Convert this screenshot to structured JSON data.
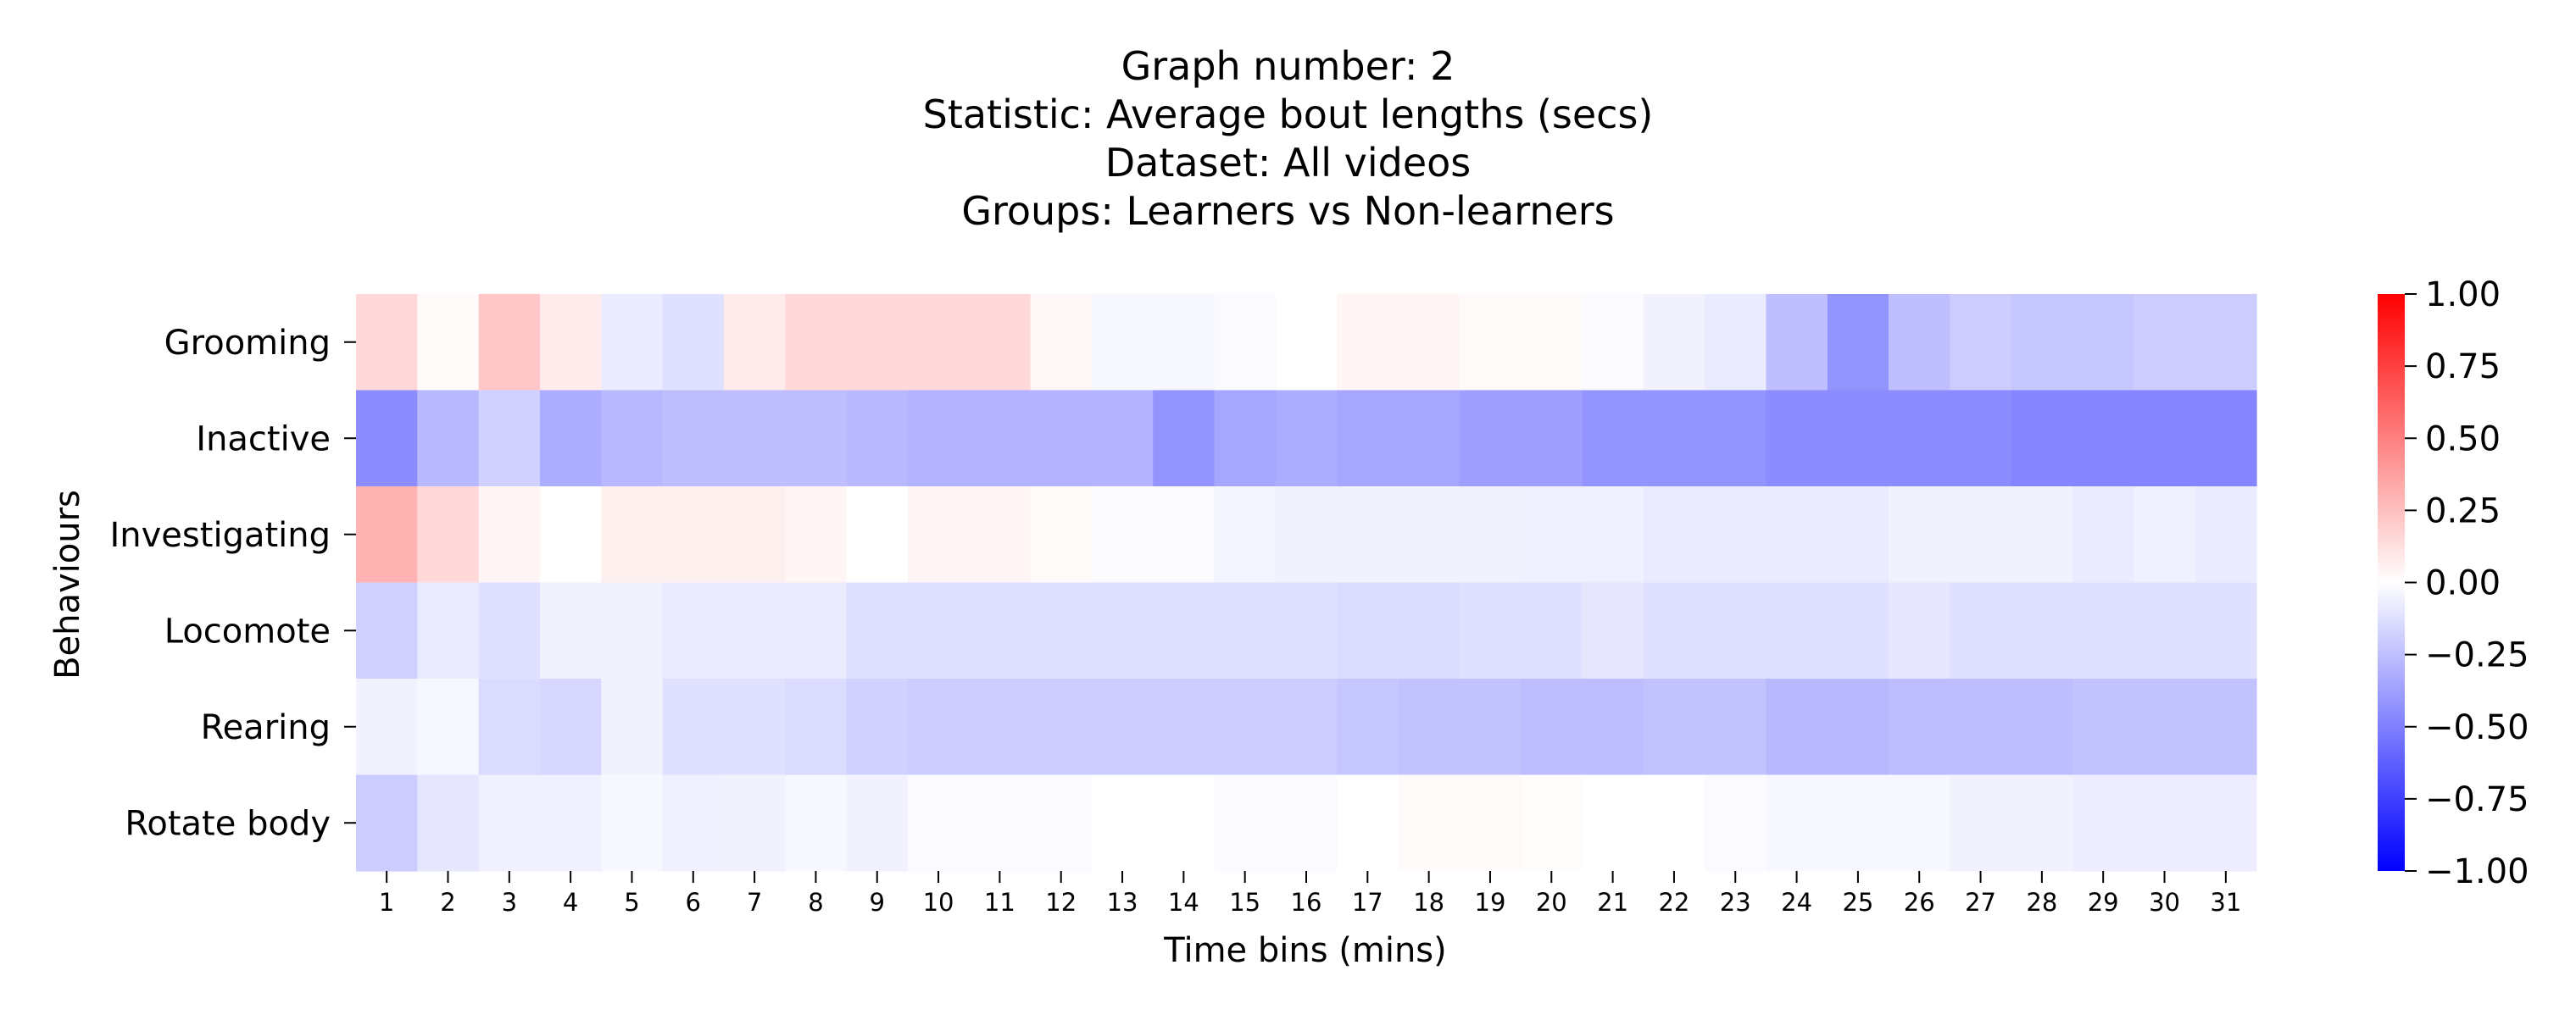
{
  "chart_data": {
    "type": "heatmap",
    "title_lines": [
      "Graph number: 2",
      "Statistic: Average bout lengths (secs)",
      "Dataset: All videos",
      "Groups: Learners vs Non-learners"
    ],
    "xlabel": "Time bins (mins)",
    "ylabel": "Behaviours",
    "x": [
      "1",
      "2",
      "3",
      "4",
      "5",
      "6",
      "7",
      "8",
      "9",
      "10",
      "11",
      "12",
      "13",
      "14",
      "15",
      "16",
      "17",
      "18",
      "19",
      "20",
      "21",
      "22",
      "23",
      "24",
      "25",
      "26",
      "27",
      "28",
      "29",
      "30",
      "31"
    ],
    "y": [
      "Grooming",
      "Inactive",
      "Investigating",
      "Locomote",
      "Rearing",
      "Rotate body"
    ],
    "values": [
      [
        0.15,
        0.02,
        0.22,
        0.08,
        -0.08,
        -0.12,
        0.08,
        0.15,
        0.15,
        0.15,
        0.15,
        0.03,
        -0.03,
        -0.03,
        -0.02,
        0,
        0.04,
        0.04,
        0.02,
        0.02,
        -0.02,
        -0.05,
        -0.08,
        -0.25,
        -0.42,
        -0.25,
        -0.2,
        -0.22,
        -0.22,
        -0.2,
        -0.2
      ],
      [
        -0.45,
        -0.28,
        -0.18,
        -0.32,
        -0.28,
        -0.25,
        -0.25,
        -0.25,
        -0.28,
        -0.3,
        -0.3,
        -0.3,
        -0.3,
        -0.42,
        -0.35,
        -0.32,
        -0.35,
        -0.35,
        -0.38,
        -0.38,
        -0.42,
        -0.42,
        -0.42,
        -0.45,
        -0.45,
        -0.45,
        -0.45,
        -0.48,
        -0.48,
        -0.48,
        -0.48
      ],
      [
        0.3,
        0.15,
        0.04,
        0,
        0.06,
        0.06,
        0.06,
        0.04,
        0,
        0.04,
        0.04,
        0.02,
        -0.01,
        -0.02,
        -0.04,
        -0.05,
        -0.05,
        -0.05,
        -0.05,
        -0.06,
        -0.06,
        -0.08,
        -0.08,
        -0.08,
        -0.08,
        -0.05,
        -0.05,
        -0.05,
        -0.08,
        -0.06,
        -0.08
      ],
      [
        -0.18,
        -0.08,
        -0.12,
        -0.05,
        -0.05,
        -0.08,
        -0.08,
        -0.08,
        -0.12,
        -0.12,
        -0.12,
        -0.12,
        -0.12,
        -0.12,
        -0.12,
        -0.12,
        -0.14,
        -0.14,
        -0.12,
        -0.12,
        -0.1,
        -0.12,
        -0.12,
        -0.12,
        -0.12,
        -0.1,
        -0.12,
        -0.12,
        -0.12,
        -0.12,
        -0.12
      ],
      [
        -0.05,
        -0.03,
        -0.14,
        -0.16,
        -0.05,
        -0.12,
        -0.12,
        -0.14,
        -0.18,
        -0.2,
        -0.2,
        -0.2,
        -0.2,
        -0.2,
        -0.2,
        -0.2,
        -0.22,
        -0.24,
        -0.24,
        -0.26,
        -0.26,
        -0.24,
        -0.24,
        -0.28,
        -0.28,
        -0.26,
        -0.26,
        -0.26,
        -0.24,
        -0.24,
        -0.24
      ],
      [
        -0.2,
        -0.1,
        -0.06,
        -0.06,
        -0.03,
        -0.06,
        -0.05,
        -0.03,
        -0.05,
        -0.02,
        -0.02,
        -0.02,
        0,
        0,
        -0.02,
        -0.02,
        0,
        0.02,
        0.02,
        0.01,
        0,
        0,
        -0.02,
        -0.03,
        -0.03,
        -0.03,
        -0.05,
        -0.05,
        -0.07,
        -0.07,
        -0.07
      ]
    ],
    "colorbar": {
      "colormap": "bwr",
      "vmin": -1.0,
      "vmax": 1.0,
      "tick_values": [
        1.0,
        0.75,
        0.5,
        0.25,
        0.0,
        -0.25,
        -0.5,
        -0.75,
        -1.0
      ],
      "tick_labels": [
        "1.00",
        "0.75",
        "0.50",
        "0.25",
        "0.00",
        "−0.25",
        "−0.50",
        "−0.75",
        "−1.00"
      ]
    },
    "grid": false,
    "legend": "colorbar-right"
  }
}
